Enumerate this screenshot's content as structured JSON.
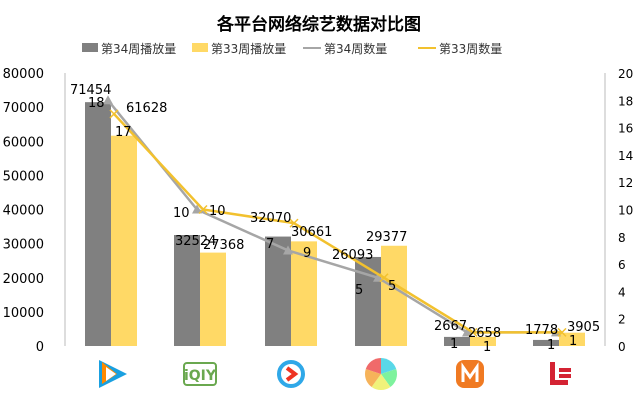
{
  "chart_data": {
    "type": "bar",
    "title": "各平台网络综艺数据对比图",
    "categories": [
      "腾讯视频",
      "爱奇艺",
      "优酷",
      "搜狐视频",
      "芒果TV",
      "乐视视频"
    ],
    "category_icons": [
      "tencent-video-icon",
      "iqiyi-icon",
      "youku-icon",
      "sohu-video-icon",
      "mango-tv-icon",
      "letv-icon"
    ],
    "series": [
      {
        "name": "第34周播放量",
        "type": "bar",
        "axis": "left",
        "color": "#808080",
        "values": [
          71454,
          32524,
          32070,
          26093,
          2667,
          1778
        ]
      },
      {
        "name": "第33周播放量",
        "type": "bar",
        "axis": "left",
        "color": "#FFD966",
        "values": [
          61628,
          27368,
          30661,
          29377,
          2658,
          3905
        ]
      },
      {
        "name": "第34周数量",
        "type": "line",
        "axis": "right",
        "color": "#A6A6A6",
        "marker": "triangle",
        "values": [
          18,
          10,
          7,
          5,
          1,
          1
        ]
      },
      {
        "name": "第33周数量",
        "type": "line",
        "axis": "right",
        "color": "#F2C12E",
        "marker": "x",
        "values": [
          17,
          10,
          9,
          5,
          1,
          1
        ]
      }
    ],
    "ylim_left": [
      0,
      80000
    ],
    "yticks_left": [
      0,
      10000,
      20000,
      30000,
      40000,
      50000,
      60000,
      70000,
      80000
    ],
    "ylim_right": [
      0,
      20
    ],
    "yticks_right": [
      0,
      2,
      4,
      6,
      8,
      10,
      12,
      14,
      16,
      18,
      20
    ],
    "legend_position": "top",
    "grid": false
  }
}
